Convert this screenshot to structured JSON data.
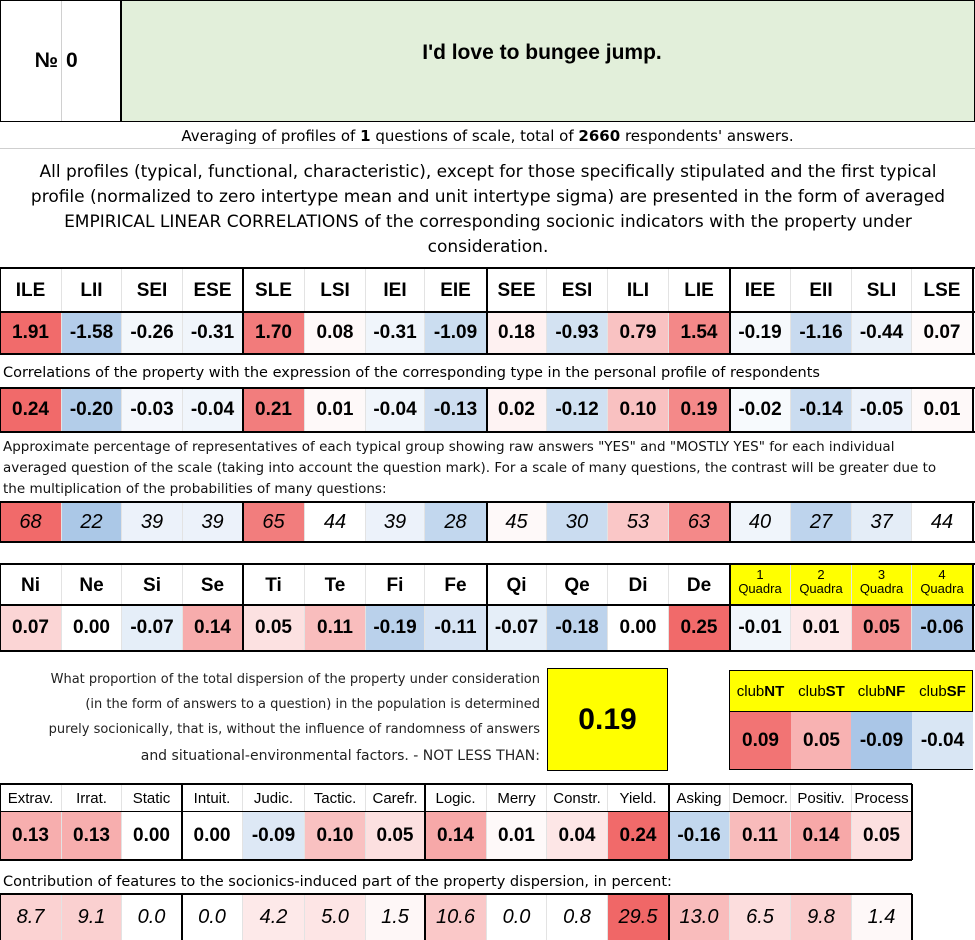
{
  "header": {
    "number_label": "№",
    "number_value": "0",
    "title": "I'd love to bungee jump."
  },
  "summary": {
    "prefix": "Averaging of profiles of",
    "questions": "1",
    "middle": "questions of scale, total of",
    "respondents": "2660",
    "suffix": "respondents' answers."
  },
  "description": "All profiles (typical, functional, characteristic), except for those specifically stipulated and the first typical profile (normalized to zero intertype mean and unit intertype sigma) are presented in the form of averaged EMPIRICAL LINEAR CORRELATIONS of the corresponding socionic indicators with the property under consideration.",
  "types": {
    "headers": [
      "ILE",
      "LII",
      "SEI",
      "ESE",
      "SLE",
      "LSI",
      "IEI",
      "EIE",
      "SEE",
      "ESI",
      "ILI",
      "LIE",
      "IEE",
      "EII",
      "SLI",
      "LSE"
    ],
    "normalized": [
      "1.91",
      "-1.58",
      "-0.26",
      "-0.31",
      "1.70",
      "0.08",
      "-0.31",
      "-1.09",
      "0.18",
      "-0.93",
      "0.79",
      "1.54",
      "-0.19",
      "-1.16",
      "-0.44",
      "0.07"
    ],
    "correlation_note": "Correlations of the property with the expression of the corresponding type in the personal profile of respondents",
    "correlations": [
      "0.24",
      "-0.20",
      "-0.03",
      "-0.04",
      "0.21",
      "0.01",
      "-0.04",
      "-0.13",
      "0.02",
      "-0.12",
      "0.10",
      "0.19",
      "-0.02",
      "-0.14",
      "-0.05",
      "0.01"
    ],
    "percentage_note": "Approximate percentage of representatives of each typical group showing raw answers \"YES\" and \"MOSTLY YES\" for each individual averaged question of the scale (taking into account the question mark). For a scale of many questions, the contrast will be greater due to the multiplication of the probabilities of many questions:",
    "percentages": [
      "68",
      "22",
      "39",
      "39",
      "65",
      "44",
      "39",
      "28",
      "45",
      "30",
      "53",
      "63",
      "40",
      "27",
      "37",
      "44"
    ]
  },
  "functions": {
    "headers": [
      "Ni",
      "Ne",
      "Si",
      "Se",
      "Ti",
      "Te",
      "Fi",
      "Fe",
      "Qi",
      "Qe",
      "Di",
      "De"
    ],
    "values": [
      "0.07",
      "0.00",
      "-0.07",
      "0.14",
      "0.05",
      "0.11",
      "-0.19",
      "-0.11",
      "-0.07",
      "-0.18",
      "0.00",
      "0.25"
    ],
    "quadra_headers": [
      {
        "num": "1",
        "word": "Quadra"
      },
      {
        "num": "2",
        "word": "Quadra"
      },
      {
        "num": "3",
        "word": "Quadra"
      },
      {
        "num": "4",
        "word": "Quadra"
      }
    ],
    "quadra_values": [
      "-0.01",
      "0.01",
      "0.05",
      "-0.06"
    ]
  },
  "dispersion": {
    "line1": "What proportion of the total dispersion of the property under consideration",
    "line2": "(in the form of answers to a question) in the population is determined",
    "line3": "purely socionically, that is, without the influence of randomness of answers",
    "line4": "and situational-environmental factors. - NOT LESS THAN:",
    "value": "0.19"
  },
  "clubs": {
    "headers": [
      {
        "prefix": "club",
        "suffix": "NT"
      },
      {
        "prefix": "club",
        "suffix": "ST"
      },
      {
        "prefix": "club",
        "suffix": "NF"
      },
      {
        "prefix": "club",
        "suffix": "SF"
      }
    ],
    "values": [
      "0.09",
      "0.05",
      "-0.09",
      "-0.04"
    ]
  },
  "traits": {
    "headers": [
      "Extrav.",
      "Irrat.",
      "Static",
      "Intuit.",
      "Judic.",
      "Tactic.",
      "Carefr.",
      "Logic.",
      "Merry",
      "Constr.",
      "Yield.",
      "Asking",
      "Democr.",
      "Positiv.",
      "Process"
    ],
    "values": [
      "0.13",
      "0.13",
      "0.00",
      "0.00",
      "-0.09",
      "0.10",
      "0.05",
      "0.14",
      "0.01",
      "0.04",
      "0.24",
      "-0.16",
      "0.11",
      "0.14",
      "0.05"
    ],
    "contribution_note": "Contribution of features to the socionics-induced part of the property dispersion, in percent:",
    "contributions": [
      "8.7",
      "9.1",
      "0.0",
      "0.0",
      "4.2",
      "5.0",
      "1.5",
      "10.6",
      "0.0",
      "0.8",
      "29.5",
      "13.0",
      "6.5",
      "9.8",
      "1.4"
    ]
  },
  "colors": {
    "title_bg": "#e2efda",
    "highlight": "#ffff00"
  }
}
